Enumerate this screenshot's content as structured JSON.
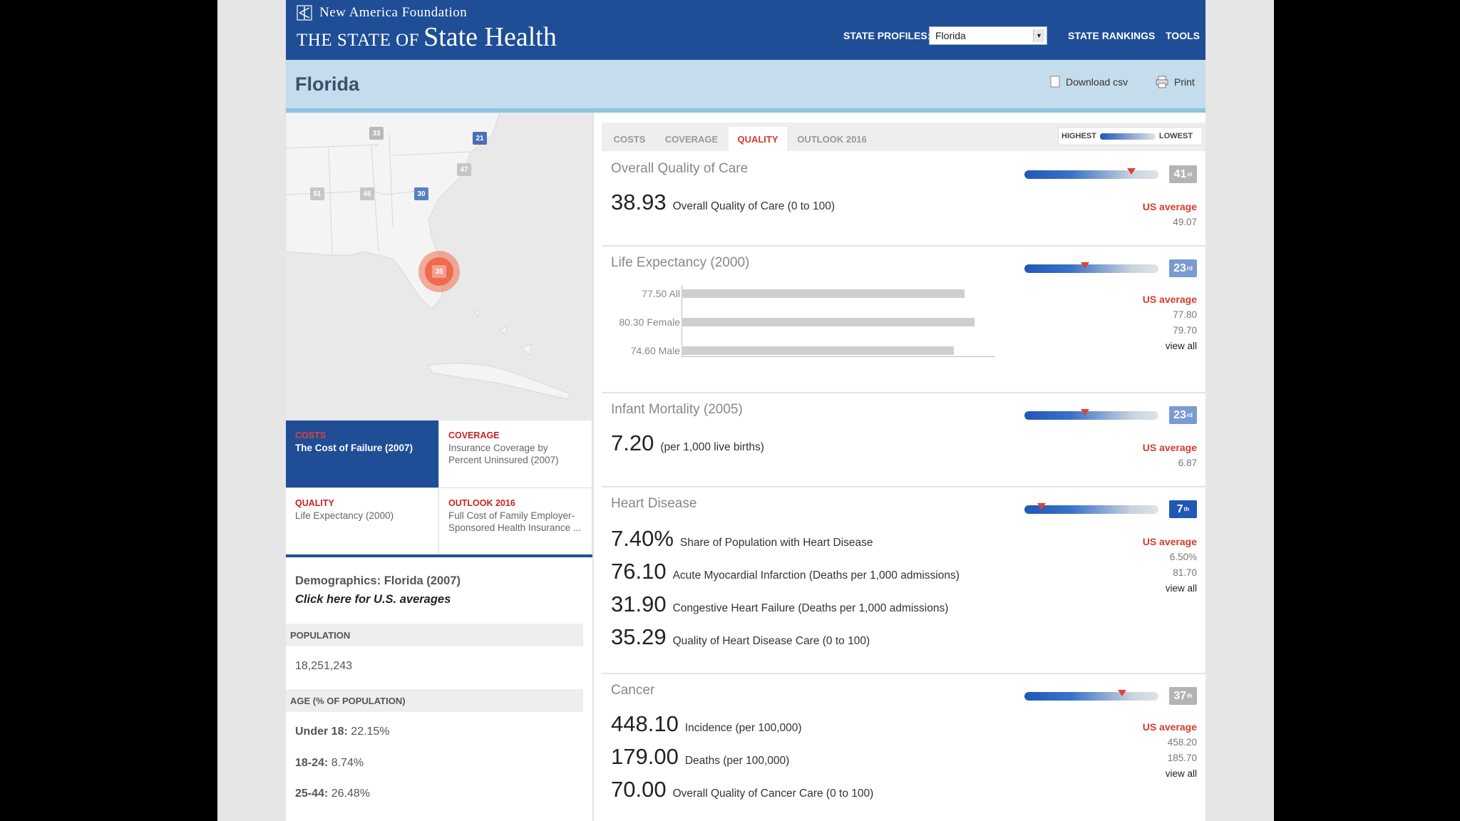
{
  "header": {
    "org_name": "New America Foundation",
    "site_prefix": "THE STATE OF",
    "site_name": "State Health",
    "state_profiles_label": "STATE PROFILES:",
    "state_select_value": "Florida",
    "nav_rankings": "STATE RANKINGS",
    "nav_tools": "TOOLS"
  },
  "titlebar": {
    "state": "Florida",
    "download": "Download csv",
    "print": "Print"
  },
  "map": {
    "badges": [
      "33",
      "21",
      "47",
      "51",
      "46",
      "30"
    ],
    "selected_badge": "35"
  },
  "cards": [
    {
      "kicker": "COSTS",
      "text": "The Cost of Failure (2007)"
    },
    {
      "kicker": "COVERAGE",
      "text": "Insurance Coverage by Percent Uninsured (2007)"
    },
    {
      "kicker": "QUALITY",
      "text": "Life Expectancy (2000)"
    },
    {
      "kicker": "OUTLOOK 2016",
      "text": "Full Cost of Family Employer- Sponsored Health Insurance ..."
    }
  ],
  "demographics": {
    "title": "Demographics: Florida (2007)",
    "link": "Click here for U.S. averages",
    "population_head": "POPULATION",
    "population": "18,251,243",
    "age_head": "AGE (% OF POPULATION)",
    "ages": [
      {
        "label": "Under 18:",
        "value": "22.15%"
      },
      {
        "label": "18-24:",
        "value": "8.74%"
      },
      {
        "label": "25-44:",
        "value": "26.48%"
      }
    ]
  },
  "tabs": [
    "COSTS",
    "COVERAGE",
    "QUALITY",
    "OUTLOOK 2016"
  ],
  "active_tab": "QUALITY",
  "legend": {
    "high": "HIGHEST",
    "low": "LOWEST"
  },
  "us_average_label": "US average",
  "view_all_label": "view all",
  "sections": {
    "overall": {
      "title": "Overall Quality of Care",
      "rank": "41",
      "rank_suffix": "st",
      "rank_color": "#b4b4b4",
      "marker": 0.8,
      "metrics": [
        {
          "value": "38.93",
          "label": "Overall Quality of Care (0 to 100)"
        }
      ],
      "us": [
        "49.07"
      ]
    },
    "life": {
      "title": "Life Expectancy (2000)",
      "rank": "23",
      "rank_suffix": "rd",
      "rank_color": "#7a9bd2",
      "marker": 0.45,
      "bars": [
        {
          "value": "77.50",
          "label": "All",
          "num": 77.5
        },
        {
          "value": "80.30",
          "label": "Female",
          "num": 80.3
        },
        {
          "value": "74.60",
          "label": "Male",
          "num": 74.6
        }
      ],
      "us": [
        "77.80",
        "79.70"
      ]
    },
    "infant": {
      "title": "Infant Mortality (2005)",
      "rank": "23",
      "rank_suffix": "rd",
      "rank_color": "#7a9bd2",
      "marker": 0.45,
      "metrics": [
        {
          "value": "7.20",
          "label": "(per 1,000 live births)"
        }
      ],
      "us": [
        "6.87"
      ]
    },
    "heart": {
      "title": "Heart Disease",
      "rank": "7",
      "rank_suffix": "th",
      "rank_color": "#1f58b7",
      "marker": 0.13,
      "metrics": [
        {
          "value": "7.40%",
          "label": "Share of Population with Heart Disease"
        },
        {
          "value": "76.10",
          "label": "Acute Myocardial Infarction (Deaths per 1,000 admissions)"
        },
        {
          "value": "31.90",
          "label": "Congestive Heart Failure (Deaths per 1,000 admissions)"
        },
        {
          "value": "35.29",
          "label": "Quality of Heart Disease Care (0 to 100)"
        }
      ],
      "us": [
        "6.50%",
        "81.70"
      ]
    },
    "cancer": {
      "title": "Cancer",
      "rank": "37",
      "rank_suffix": "th",
      "rank_color": "#b4b4b4",
      "marker": 0.73,
      "metrics": [
        {
          "value": "448.10",
          "label": "Incidence (per 100,000)"
        },
        {
          "value": "179.00",
          "label": "Deaths (per 100,000)"
        },
        {
          "value": "70.00",
          "label": "Overall Quality of Cancer Care (0 to 100)"
        }
      ],
      "us": [
        "458.20",
        "185.70"
      ]
    }
  }
}
